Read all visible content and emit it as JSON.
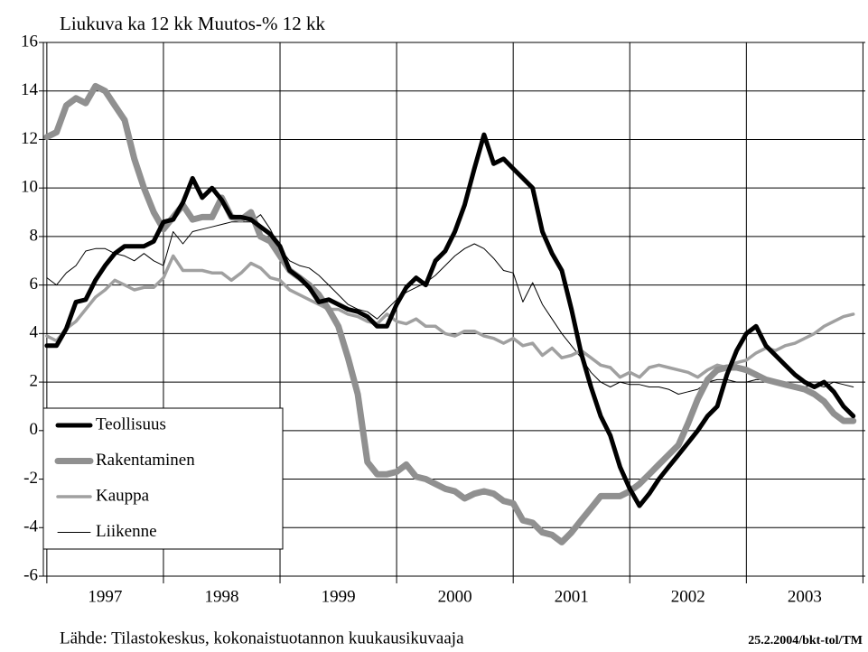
{
  "chart_data": {
    "type": "line",
    "title": "Liukuva ka 12 kk Muutos-% 12 kk",
    "source": "Lähde: Tilastokeskus, kokonaistuotannon kuukausikuvaaja",
    "credit": "25.2.2004/bkt-tol/TM",
    "categories": [
      "1997",
      "1998",
      "1999",
      "2000",
      "2001",
      "2002",
      "2003"
    ],
    "xlim": [
      1996.97,
      2004.02
    ],
    "xticks": [
      1997,
      1998,
      1999,
      2000,
      2001,
      2002,
      2003,
      2004
    ],
    "ylim": [
      -6,
      16
    ],
    "yticks": [
      -6,
      -4,
      -2,
      0,
      2,
      4,
      6,
      8,
      10,
      12,
      14,
      16
    ],
    "grid": true,
    "legend": "lower left",
    "x": [
      1997,
      1997.083,
      1997.167,
      1997.25,
      1997.333,
      1997.417,
      1997.5,
      1997.583,
      1997.667,
      1997.75,
      1997.833,
      1997.917,
      1998,
      1998.083,
      1998.167,
      1998.25,
      1998.333,
      1998.417,
      1998.5,
      1998.583,
      1998.667,
      1998.75,
      1998.833,
      1998.917,
      1999,
      1999.083,
      1999.167,
      1999.25,
      1999.333,
      1999.417,
      1999.5,
      1999.583,
      1999.667,
      1999.75,
      1999.833,
      1999.917,
      2000,
      2000.083,
      2000.167,
      2000.25,
      2000.333,
      2000.417,
      2000.5,
      2000.583,
      2000.667,
      2000.75,
      2000.833,
      2000.917,
      2001,
      2001.083,
      2001.167,
      2001.25,
      2001.333,
      2001.417,
      2001.5,
      2001.583,
      2001.667,
      2001.75,
      2001.833,
      2001.917,
      2002,
      2002.083,
      2002.167,
      2002.25,
      2002.333,
      2002.417,
      2002.5,
      2002.583,
      2002.667,
      2002.75,
      2002.833,
      2002.917,
      2003,
      2003.083,
      2003.167,
      2003.25,
      2003.333,
      2003.417,
      2003.5,
      2003.583,
      2003.667,
      2003.75,
      2003.833,
      2003.917
    ],
    "series": [
      {
        "name": "Teollisuus",
        "color": "#000000",
        "line_width": 5,
        "values": [
          3.5,
          3.5,
          4.2,
          5.3,
          5.4,
          6.2,
          6.8,
          7.3,
          7.6,
          7.6,
          7.6,
          7.8,
          8.6,
          8.7,
          9.4,
          10.4,
          9.6,
          10.0,
          9.5,
          8.8,
          8.8,
          8.7,
          8.4,
          8.1,
          7.6,
          6.6,
          6.3,
          5.9,
          5.3,
          5.4,
          5.2,
          5.0,
          4.9,
          4.7,
          4.3,
          4.3,
          5.2,
          5.9,
          6.3,
          6.0,
          7.0,
          7.4,
          8.2,
          9.3,
          10.8,
          12.2,
          11.0,
          11.2,
          10.8,
          10.4,
          10.0,
          8.2,
          7.3,
          6.6,
          5.0,
          3.2,
          1.8,
          0.6,
          -0.2,
          -1.5,
          -2.4,
          -3.1,
          -2.6,
          -2.0,
          -1.5,
          -1.0,
          -0.5,
          0.0,
          0.6,
          1.0,
          2.3,
          3.3,
          4.0,
          4.3,
          3.5,
          3.1,
          2.7,
          2.3,
          2.0,
          1.8,
          2.0,
          1.6,
          1.0,
          0.6
        ]
      },
      {
        "name": "Rakentaminen",
        "color": "#909090",
        "line_width": 7,
        "values": [
          12.1,
          12.3,
          13.4,
          13.7,
          13.5,
          14.2,
          14.0,
          13.4,
          12.8,
          11.2,
          10.0,
          9.0,
          8.3,
          8.8,
          9.3,
          8.7,
          8.8,
          8.8,
          9.6,
          8.8,
          8.7,
          9.0,
          8.0,
          7.8,
          7.2,
          6.6,
          6.3,
          6.0,
          5.6,
          5.0,
          4.3,
          3.0,
          1.5,
          -1.3,
          -1.8,
          -1.8,
          -1.7,
          -1.4,
          -1.9,
          -2.0,
          -2.2,
          -2.4,
          -2.5,
          -2.8,
          -2.6,
          -2.5,
          -2.6,
          -2.9,
          -3.0,
          -3.7,
          -3.8,
          -4.2,
          -4.3,
          -4.6,
          -4.2,
          -3.7,
          -3.2,
          -2.7,
          -2.7,
          -2.7,
          -2.5,
          -2.2,
          -1.8,
          -1.4,
          -1.0,
          -0.6,
          0.3,
          1.3,
          2.1,
          2.5,
          2.6,
          2.6,
          2.5,
          2.3,
          2.1,
          2.0,
          1.9,
          1.8,
          1.7,
          1.5,
          1.2,
          0.7,
          0.4,
          0.4
        ]
      },
      {
        "name": "Kauppa",
        "color": "#a0a0a0",
        "line_width": 3.5,
        "values": [
          3.9,
          3.7,
          4.2,
          4.5,
          5.0,
          5.5,
          5.8,
          6.2,
          6.0,
          5.8,
          5.9,
          5.9,
          6.3,
          7.2,
          6.6,
          6.6,
          6.6,
          6.5,
          6.5,
          6.2,
          6.5,
          6.9,
          6.7,
          6.3,
          6.2,
          5.8,
          5.6,
          5.4,
          5.2,
          5.0,
          5.0,
          4.8,
          4.7,
          4.5,
          4.4,
          4.8,
          4.5,
          4.4,
          4.6,
          4.3,
          4.3,
          4.0,
          3.9,
          4.1,
          4.1,
          3.9,
          3.8,
          3.6,
          3.8,
          3.5,
          3.6,
          3.1,
          3.4,
          3.0,
          3.1,
          3.3,
          3.0,
          2.7,
          2.6,
          2.2,
          2.4,
          2.2,
          2.6,
          2.7,
          2.6,
          2.5,
          2.4,
          2.2,
          2.5,
          2.7,
          2.6,
          2.8,
          2.9,
          3.2,
          3.4,
          3.3,
          3.5,
          3.6,
          3.8,
          4.0,
          4.3,
          4.5,
          4.7,
          4.8
        ]
      },
      {
        "name": "Liikenne",
        "color": "#000000",
        "line_width": 1,
        "values": [
          6.3,
          6.0,
          6.5,
          6.8,
          7.4,
          7.5,
          7.5,
          7.3,
          7.2,
          7.0,
          7.3,
          7.0,
          6.8,
          8.2,
          7.7,
          8.2,
          8.3,
          8.4,
          8.5,
          8.6,
          8.6,
          8.6,
          8.9,
          8.3,
          7.5,
          7.0,
          6.8,
          6.7,
          6.4,
          6.0,
          5.6,
          5.2,
          5.0,
          4.9,
          4.6,
          5.0,
          5.4,
          5.7,
          5.9,
          6.1,
          6.4,
          6.8,
          7.2,
          7.5,
          7.7,
          7.5,
          7.1,
          6.6,
          6.5,
          5.3,
          6.1,
          5.2,
          4.6,
          4.0,
          3.5,
          3.0,
          2.4,
          2.0,
          1.8,
          2.0,
          1.9,
          1.9,
          1.8,
          1.8,
          1.7,
          1.5,
          1.6,
          1.7,
          2.0,
          2.1,
          2.1,
          2.0,
          2.0,
          2.1,
          2.1,
          2.0,
          1.8,
          1.7,
          1.8,
          1.9,
          1.8,
          2.0,
          1.9,
          1.8
        ]
      }
    ]
  }
}
